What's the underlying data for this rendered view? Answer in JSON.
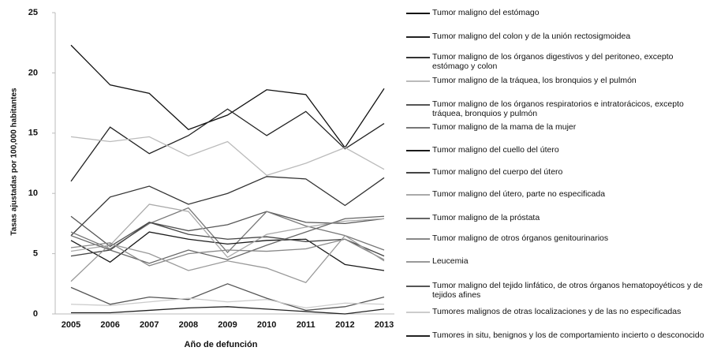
{
  "chart_data": {
    "type": "line",
    "y_label": "Tasas ajustadas por 100,000 habitantes",
    "x_label": "Año de defunción",
    "categories": [
      "2005",
      "2006",
      "2007",
      "2008",
      "2009",
      "2010",
      "2011",
      "2012",
      "2013"
    ],
    "ylim": [
      0,
      25
    ],
    "yticks": [
      0,
      5,
      10,
      15,
      20,
      25
    ],
    "grid": false,
    "series": [
      {
        "name": "Tumor maligno del estómago",
        "color": "#111111",
        "values": [
          22.3,
          19,
          18.3,
          15.3,
          16.5,
          18.6,
          18.2,
          13.8,
          18.7
        ]
      },
      {
        "name": "Tumor maligno del colon y de la unión rectosigmoidea",
        "color": "#222222",
        "values": [
          11,
          15.5,
          13.3,
          14.8,
          17,
          14.8,
          16.8,
          13.7,
          15.8
        ]
      },
      {
        "name": "Tumor maligno de los órganos digestivos y del peritoneo, excepto estómago y colon",
        "color": "#333333",
        "values": [
          6.5,
          9.7,
          10.6,
          9.1,
          10,
          11.4,
          11.2,
          9,
          11.3
        ]
      },
      {
        "name": "Tumor maligno de la tráquea, los bronquios y el pulmón",
        "color": "#bbbbbb",
        "values": [
          14.7,
          14.3,
          14.7,
          13.1,
          14.3,
          11.5,
          12.5,
          13.8,
          12
        ]
      },
      {
        "name": "Tumor maligno de los órganos respiratorios e intratorácicos, excepto tráquea, bronquios y pulmón",
        "color": "#555555",
        "values": [
          8.1,
          5.6,
          7.6,
          6.9,
          7.4,
          8.5,
          7.6,
          7.5,
          7.9
        ]
      },
      {
        "name": "Tumor maligno de la mama de la mujer",
        "color": "#777777",
        "values": [
          6.8,
          5.4,
          7.5,
          8.8,
          5.1,
          8.5,
          7.3,
          6.5,
          5.3
        ]
      },
      {
        "name": "Tumor maligno del cuello del útero",
        "color": "#1a1a1a",
        "values": [
          6.1,
          4.3,
          6.8,
          6.2,
          5.8,
          6.1,
          6.2,
          4.1,
          3.6
        ]
      },
      {
        "name": "Tumor maligno del cuerpo del útero",
        "color": "#444444",
        "values": [
          4.8,
          5.3,
          7.6,
          6.6,
          6.2,
          6.4,
          6.0,
          6.2,
          4.8
        ]
      },
      {
        "name": "Tumor maligno del útero, parte no especificada",
        "color": "#aaaaaa",
        "values": [
          5.2,
          5.7,
          9.1,
          8.5,
          4.7,
          6.6,
          7.2,
          7.7,
          7.9
        ]
      },
      {
        "name": "Tumor maligno de la próstata",
        "color": "#666666",
        "values": [
          6.5,
          5.3,
          4.2,
          5.3,
          4.5,
          5.7,
          6.8,
          7.9,
          8.1
        ]
      },
      {
        "name": "Tumor maligno de otros órganos genitourinarios",
        "color": "#888888",
        "values": [
          5.5,
          5.9,
          4.0,
          5.0,
          5.3,
          5.2,
          5.4,
          6.2,
          4.5
        ]
      },
      {
        "name": "Leucemia",
        "color": "#999999",
        "values": [
          2.7,
          5.8,
          5.0,
          3.6,
          4.4,
          3.8,
          2.6,
          6.5,
          4.4
        ]
      },
      {
        "name": "Tumor maligno del tejido linfático, de otros órganos hematopoyéticos y de tejidos afines",
        "color": "#555555",
        "values": [
          2.2,
          0.8,
          1.4,
          1.2,
          2.5,
          1.3,
          0.3,
          0.6,
          1.4
        ]
      },
      {
        "name": "Tumores malignos de otras localizaciones y de las no especificadas",
        "color": "#cccccc",
        "values": [
          0.8,
          0.7,
          1.0,
          1.3,
          1.0,
          1.2,
          0.5,
          0.9,
          0.8
        ]
      },
      {
        "name": "Tumores in situ, benignos y los de comportamiento incierto o desconocido",
        "color": "#222222",
        "values": [
          0.1,
          0.1,
          0.3,
          0.5,
          0.6,
          0.4,
          0.2,
          0.0,
          0.4
        ]
      }
    ]
  }
}
